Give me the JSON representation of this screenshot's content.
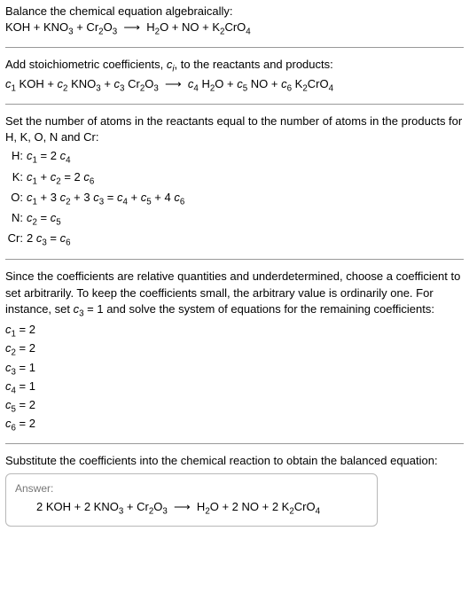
{
  "intro_line": "Balance the chemical equation algebraically:",
  "base_equation_html": "KOH + KNO<sub>3</sub> + Cr<sub>2</sub>O<sub>3</sub>&nbsp;&nbsp;⟶&nbsp;&nbsp;H<sub>2</sub>O + NO + K<sub>2</sub>CrO<sub>4</sub>",
  "stoich_line_html": "Add stoichiometric coefficients, <i>c<sub>i</sub></i>, to the reactants and products:",
  "stoich_equation_html": "<i>c</i><sub>1</sub> KOH + <i>c</i><sub>2</sub> KNO<sub>3</sub> + <i>c</i><sub>3</sub> Cr<sub>2</sub>O<sub>3</sub>&nbsp;&nbsp;⟶&nbsp;&nbsp;<i>c</i><sub>4</sub> H<sub>2</sub>O + <i>c</i><sub>5</sub> NO + <i>c</i><sub>6</sub> K<sub>2</sub>CrO<sub>4</sub>",
  "atoms_line": "Set the number of atoms in the reactants equal to the number of atoms in the products for H, K, O, N and Cr:",
  "equations": [
    {
      "element": "H:",
      "eq_html": "<i>c</i><sub>1</sub> = 2 <i>c</i><sub>4</sub>"
    },
    {
      "element": "K:",
      "eq_html": "<i>c</i><sub>1</sub> + <i>c</i><sub>2</sub> = 2 <i>c</i><sub>6</sub>"
    },
    {
      "element": "O:",
      "eq_html": "<i>c</i><sub>1</sub> + 3 <i>c</i><sub>2</sub> + 3 <i>c</i><sub>3</sub> = <i>c</i><sub>4</sub> + <i>c</i><sub>5</sub> + 4 <i>c</i><sub>6</sub>"
    },
    {
      "element": "N:",
      "eq_html": "<i>c</i><sub>2</sub> = <i>c</i><sub>5</sub>"
    },
    {
      "element": "Cr:",
      "eq_html": "2 <i>c</i><sub>3</sub> = <i>c</i><sub>6</sub>"
    }
  ],
  "underdet_line_html": "Since the coefficients are relative quantities and underdetermined, choose a coefficient to set arbitrarily. To keep the coefficients small, the arbitrary value is ordinarily one. For instance, set <i>c</i><sub>3</sub> = 1 and solve the system of equations for the remaining coefficients:",
  "coefs": [
    "<i>c</i><sub>1</sub> = 2",
    "<i>c</i><sub>2</sub> = 2",
    "<i>c</i><sub>3</sub> = 1",
    "<i>c</i><sub>4</sub> = 1",
    "<i>c</i><sub>5</sub> = 2",
    "<i>c</i><sub>6</sub> = 2"
  ],
  "subst_line": "Substitute the coefficients into the chemical reaction to obtain the balanced equation:",
  "answer_label": "Answer:",
  "answer_eq_html": "2 KOH + 2 KNO<sub>3</sub> + Cr<sub>2</sub>O<sub>3</sub>&nbsp;&nbsp;⟶&nbsp;&nbsp;H<sub>2</sub>O + 2 NO + 2 K<sub>2</sub>CrO<sub>4</sub>"
}
